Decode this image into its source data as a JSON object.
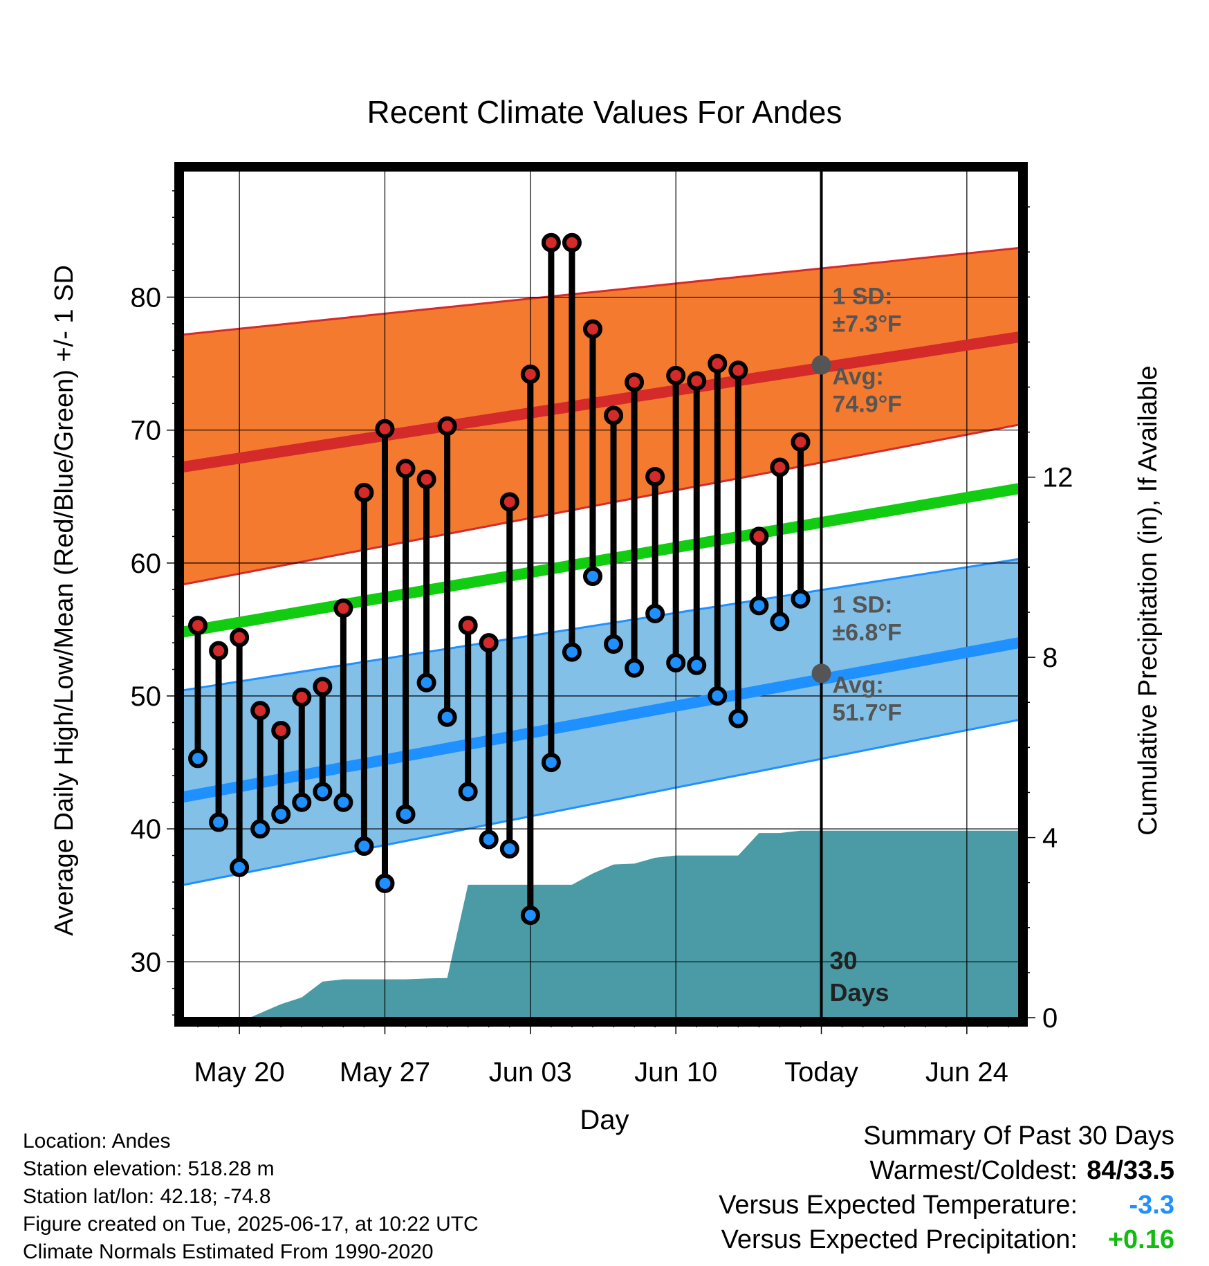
{
  "chart_data": {
    "type": "line",
    "title": "Recent Climate Values For Andes",
    "xlabel": "Day",
    "ylabel": "Average Daily High/Low/Mean (Red/Blue/Green) +/- 1 SD",
    "y2label": "Cumulative Precipitation (in), If Available",
    "x_tick_labels": [
      "May 20",
      "May 27",
      "Jun 03",
      "Jun 10",
      "Today",
      "Jun 24"
    ],
    "x_tick_day_index": [
      2,
      9,
      16,
      23,
      30,
      37
    ],
    "xlim_day_index": [
      -0.7,
      39.5
    ],
    "ylim": [
      25.8,
      89.5
    ],
    "y_ticks": [
      30,
      40,
      50,
      60,
      70,
      80
    ],
    "y2lim": [
      0,
      18.8
    ],
    "y2_ticks": [
      0,
      4,
      8,
      12
    ],
    "today_marker": {
      "day_index": 30,
      "label_line1": "30",
      "label_line2": "Days"
    },
    "normals": {
      "high_avg": {
        "start": 67.4,
        "end": 77.0,
        "color": "#d42a2a"
      },
      "high_sd_band": {
        "upper_start": 77.3,
        "upper_end": 83.7,
        "lower_start": 58.6,
        "lower_end": 70.4,
        "color": "#f47a30"
      },
      "mean_avg": {
        "start": 55.0,
        "end": 65.6,
        "color": "#11cc11"
      },
      "low_avg": {
        "start": 42.6,
        "end": 54.0,
        "color": "#1e90ff"
      },
      "low_sd_band": {
        "upper_start": 50.6,
        "upper_end": 60.3,
        "lower_start": 36.0,
        "lower_end": 48.2,
        "color": "#82c0e8"
      }
    },
    "annotations": {
      "high_sd_label_1": "1 SD:",
      "high_sd_label_2": "±7.3°F",
      "high_avg_label_1": "Avg:",
      "high_avg_label_2": "74.9°F",
      "high_today_avg": 74.9,
      "low_sd_label_1": "1 SD:",
      "low_sd_label_2": "±6.8°F",
      "low_avg_label_1": "Avg:",
      "low_avg_label_2": "51.7°F",
      "low_today_avg": 51.7
    },
    "series": [
      {
        "name": "High",
        "color": "#d42a2a",
        "values": [
          55.3,
          53.4,
          54.4,
          48.9,
          47.4,
          49.9,
          50.7,
          56.6,
          65.3,
          70.1,
          67.1,
          66.3,
          70.3,
          55.3,
          54.0,
          64.6,
          74.2,
          84.1,
          84.1,
          77.6,
          71.1,
          73.6,
          66.5,
          74.1,
          73.7,
          75.0,
          74.5,
          62.0,
          67.2,
          69.1
        ]
      },
      {
        "name": "Low",
        "color": "#1e90ff",
        "values": [
          45.3,
          40.5,
          37.1,
          40.0,
          41.1,
          42.0,
          42.8,
          42.0,
          38.7,
          35.9,
          41.1,
          51.0,
          48.4,
          42.8,
          39.2,
          38.5,
          33.5,
          45.0,
          53.3,
          59.0,
          53.9,
          52.1,
          56.2,
          52.5,
          52.3,
          50.0,
          48.3,
          56.8,
          55.6,
          57.3
        ]
      },
      {
        "name": "Cumulative Precipitation",
        "color": "#4a9ba5",
        "x": [
          0.5,
          2.5,
          4,
          5,
          6,
          7,
          8,
          9,
          10,
          11,
          12,
          13,
          14,
          15,
          16,
          17,
          18,
          19,
          20,
          21,
          22,
          23,
          24,
          25,
          26,
          27,
          28,
          29,
          30,
          39.5
        ],
        "values": [
          0,
          0,
          0.3,
          0.45,
          0.8,
          0.85,
          0.85,
          0.85,
          0.85,
          0.87,
          0.88,
          2.95,
          2.95,
          2.95,
          2.95,
          2.95,
          2.95,
          3.2,
          3.4,
          3.42,
          3.55,
          3.6,
          3.6,
          3.6,
          3.6,
          4.1,
          4.1,
          4.15,
          4.15,
          4.15
        ]
      }
    ]
  },
  "info": {
    "location": "Location: Andes",
    "elevation": "Station elevation: 518.28 m",
    "latlon": "Station lat/lon: 42.18; -74.8",
    "created": "Figure created on Tue, 2025-06-17, at 10:22 UTC",
    "normals": "Climate Normals Estimated From 1990-2020"
  },
  "summary": {
    "heading": "Summary Of Past 30 Days",
    "warm_cold_label": "Warmest/Coldest:",
    "warm_cold_value": "84/33.5",
    "temp_label": "Versus Expected Temperature:",
    "temp_value": "-3.3",
    "temp_color": "#1e90ff",
    "precip_label": "Versus Expected Precipitation:",
    "precip_value": "+0.16",
    "precip_color": "#11bb11"
  }
}
